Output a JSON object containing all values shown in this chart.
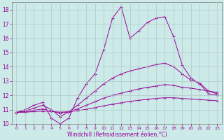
{
  "xlabel": "Windchill (Refroidissement éolien,°C)",
  "xlim": [
    -0.5,
    23.5
  ],
  "ylim": [
    10,
    18.5
  ],
  "yticks": [
    10,
    11,
    12,
    13,
    14,
    15,
    16,
    17,
    18
  ],
  "xticks": [
    0,
    1,
    2,
    3,
    4,
    5,
    6,
    7,
    8,
    9,
    10,
    11,
    12,
    13,
    14,
    15,
    16,
    17,
    18,
    19,
    20,
    21,
    22,
    23
  ],
  "bg_color": "#cceae8",
  "grid_color": "#b0c8c8",
  "line_color": "#990099",
  "lines": [
    {
      "x": [
        0,
        1,
        2,
        3,
        4,
        5,
        6,
        7,
        8,
        9,
        10,
        11,
        12,
        13,
        14,
        15,
        16,
        17,
        18,
        19,
        20,
        21,
        22,
        23
      ],
      "y": [
        10.8,
        11.0,
        11.3,
        11.5,
        10.4,
        10.0,
        10.4,
        11.8,
        12.8,
        13.5,
        15.2,
        17.4,
        18.2,
        16.0,
        16.5,
        17.1,
        17.4,
        17.5,
        16.1,
        14.1,
        13.2,
        12.8,
        12.1,
        12.0
      ]
    },
    {
      "x": [
        0,
        1,
        2,
        3,
        4,
        5,
        6,
        7,
        8,
        9,
        10,
        11,
        12,
        13,
        14,
        15,
        16,
        17,
        18,
        19,
        20,
        21,
        22,
        23
      ],
      "y": [
        10.8,
        10.9,
        11.1,
        11.3,
        11.0,
        10.5,
        10.85,
        11.3,
        11.8,
        12.3,
        12.8,
        13.2,
        13.5,
        13.7,
        13.85,
        14.0,
        14.15,
        14.25,
        14.0,
        13.5,
        13.05,
        12.85,
        12.3,
        12.1
      ]
    },
    {
      "x": [
        0,
        1,
        2,
        3,
        4,
        5,
        6,
        7,
        8,
        9,
        10,
        11,
        12,
        13,
        14,
        15,
        16,
        17,
        18,
        19,
        20,
        21,
        22,
        23
      ],
      "y": [
        10.8,
        10.85,
        10.95,
        11.05,
        10.9,
        10.75,
        10.85,
        11.05,
        11.3,
        11.55,
        11.8,
        12.0,
        12.15,
        12.3,
        12.45,
        12.55,
        12.65,
        12.75,
        12.7,
        12.55,
        12.5,
        12.4,
        12.3,
        12.2
      ]
    },
    {
      "x": [
        0,
        1,
        2,
        3,
        4,
        5,
        6,
        7,
        8,
        9,
        10,
        11,
        12,
        13,
        14,
        15,
        16,
        17,
        18,
        19,
        20,
        21,
        22,
        23
      ],
      "y": [
        10.8,
        10.82,
        10.86,
        10.9,
        10.87,
        10.82,
        10.85,
        10.92,
        11.02,
        11.14,
        11.26,
        11.38,
        11.48,
        11.57,
        11.65,
        11.72,
        11.78,
        11.83,
        11.83,
        11.78,
        11.74,
        11.7,
        11.66,
        11.62
      ]
    }
  ]
}
